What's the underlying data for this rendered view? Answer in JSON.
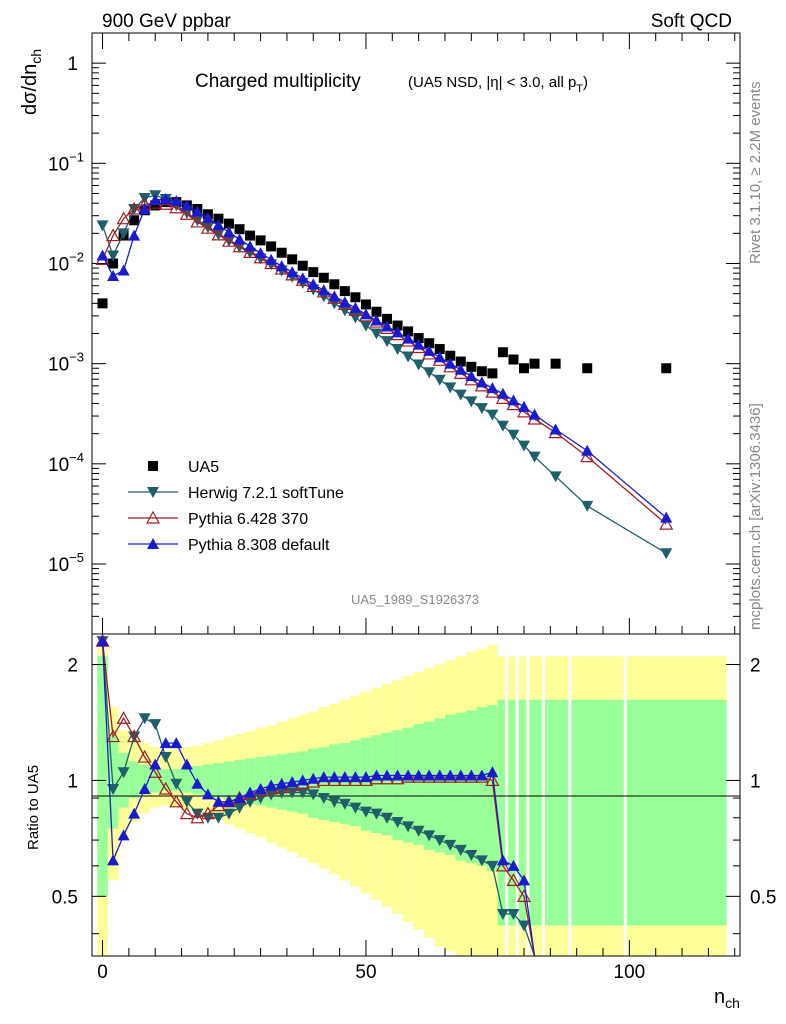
{
  "header": {
    "left": "900 GeV ppbar",
    "right": "Soft QCD"
  },
  "side_text": {
    "rivet": "Rivet 3.1.10, ≥ 2.2M events",
    "source": "mcplots.cern.ch [arXiv:1306.3436]"
  },
  "main_title": {
    "text": "Charged multiplicity",
    "sub": "(UA5 NSD, |η| < 3.0, all p",
    "sub_sub": "T",
    "sub_end": ")"
  },
  "analysis_label": "UA5_1989_S1926373",
  "top_ylabel": {
    "main": "dσ/dn",
    "sub": "ch"
  },
  "ratio_ylabel": "Ratio to UA5",
  "xlabel": {
    "main": "n",
    "sub": "ch"
  },
  "top_ticks": [
    {
      "label": "1",
      "exp": "",
      "value": 1
    },
    {
      "label": "10",
      "exp": "−1",
      "value": 0.1
    },
    {
      "label": "10",
      "exp": "−2",
      "value": 0.01
    },
    {
      "label": "10",
      "exp": "−3",
      "value": 0.001
    },
    {
      "label": "10",
      "exp": "−4",
      "value": 0.0001
    },
    {
      "label": "10",
      "exp": "−5",
      "value": 1e-05
    }
  ],
  "ratio_ticks": [
    {
      "label": "2",
      "value": 2
    },
    {
      "label": "1",
      "value": 1
    },
    {
      "label": "0.5",
      "value": 0.5
    }
  ],
  "x_ticks": [
    {
      "label": "0",
      "value": 0
    },
    {
      "label": "50",
      "value": 50
    },
    {
      "label": "100",
      "value": 100
    }
  ],
  "legend": [
    {
      "label": "UA5",
      "marker": "square",
      "color": "#000000"
    },
    {
      "label": "Herwig 7.2.1 softTune",
      "marker": "tri-down",
      "color": "#1f5f6a"
    },
    {
      "label": "Pythia 6.428 370",
      "marker": "tri-open",
      "color": "#a01f26"
    },
    {
      "label": "Pythia 8.308 default",
      "marker": "tri-up",
      "color": "#1a1acf"
    }
  ],
  "chart_data": [
    {
      "type": "scatter",
      "xlim": [
        -2,
        121
      ],
      "ylim": [
        2e-06,
        2
      ],
      "yscale": "log",
      "grid": false,
      "legend_position": "bottom-left",
      "series": [
        {
          "name": "UA5",
          "x": [
            0,
            2,
            4,
            6,
            8,
            10,
            12,
            14,
            16,
            18,
            20,
            22,
            24,
            26,
            28,
            30,
            32,
            34,
            36,
            38,
            40,
            42,
            44,
            46,
            48,
            50,
            52,
            54,
            56,
            58,
            60,
            62,
            64,
            66,
            68,
            70,
            72,
            74,
            76,
            78,
            80,
            82,
            86,
            92,
            107
          ],
          "y": [
            0.004,
            0.01,
            0.019,
            0.027,
            0.034,
            0.038,
            0.041,
            0.041,
            0.038,
            0.035,
            0.031,
            0.028,
            0.025,
            0.022,
            0.019,
            0.017,
            0.0148,
            0.0128,
            0.011,
            0.0095,
            0.0082,
            0.0072,
            0.0062,
            0.0053,
            0.0046,
            0.0039,
            0.0033,
            0.0028,
            0.0024,
            0.0021,
            0.0018,
            0.0016,
            0.0014,
            0.0012,
            0.00105,
            0.00093,
            0.00084,
            0.0008,
            0.0013,
            0.0011,
            0.0009,
            0.001,
            0.001,
            0.0009,
            0.0009
          ]
        },
        {
          "name": "Herwig 7.2.1 softTune",
          "x": [
            0,
            2,
            4,
            6,
            8,
            10,
            12,
            14,
            16,
            18,
            20,
            22,
            24,
            26,
            28,
            30,
            32,
            34,
            36,
            38,
            40,
            42,
            44,
            46,
            48,
            50,
            52,
            54,
            56,
            58,
            60,
            62,
            64,
            66,
            68,
            70,
            72,
            74,
            76,
            78,
            80,
            82,
            86,
            92,
            107
          ],
          "y": [
            0.024,
            0.012,
            0.02,
            0.035,
            0.045,
            0.048,
            0.044,
            0.038,
            0.032,
            0.027,
            0.023,
            0.0195,
            0.0168,
            0.0146,
            0.0128,
            0.0112,
            0.0098,
            0.0085,
            0.0074,
            0.0064,
            0.0055,
            0.0047,
            0.004,
            0.0034,
            0.0029,
            0.0024,
            0.002,
            0.00168,
            0.0014,
            0.00118,
            0.00098,
            0.00082,
            0.00069,
            0.00058,
            0.00049,
            0.00042,
            0.00036,
            0.00031,
            0.00024,
            0.000195,
            0.000152,
            0.000118,
            7.5e-05,
            3.8e-05,
            1.28e-05
          ]
        },
        {
          "name": "Pythia 6.428 370",
          "x": [
            0,
            2,
            4,
            6,
            8,
            10,
            12,
            14,
            16,
            18,
            20,
            22,
            24,
            26,
            28,
            30,
            32,
            34,
            36,
            38,
            40,
            42,
            44,
            46,
            48,
            50,
            52,
            54,
            56,
            58,
            60,
            62,
            64,
            66,
            68,
            70,
            72,
            74,
            76,
            78,
            80,
            82,
            86,
            92,
            107
          ],
          "y": [
            0.011,
            0.019,
            0.028,
            0.035,
            0.039,
            0.04,
            0.039,
            0.036,
            0.031,
            0.026,
            0.0225,
            0.0193,
            0.0167,
            0.0147,
            0.0129,
            0.0114,
            0.01,
            0.0088,
            0.0077,
            0.0068,
            0.0059,
            0.0052,
            0.0045,
            0.0039,
            0.0034,
            0.003,
            0.0026,
            0.00225,
            0.00195,
            0.00168,
            0.00145,
            0.00125,
            0.00108,
            0.00093,
            0.0008,
            0.00069,
            0.0006,
            0.00052,
            0.00045,
            0.00039,
            0.00033,
            0.00028,
            0.000205,
            0.000118,
            2.5e-05
          ]
        },
        {
          "name": "Pythia 8.308 default",
          "x": [
            0,
            2,
            4,
            6,
            8,
            10,
            12,
            14,
            16,
            18,
            20,
            22,
            24,
            26,
            28,
            30,
            32,
            34,
            36,
            38,
            40,
            42,
            44,
            46,
            48,
            50,
            52,
            54,
            56,
            58,
            60,
            62,
            64,
            66,
            68,
            70,
            72,
            74,
            76,
            78,
            80,
            82,
            86,
            92,
            107
          ],
          "y": [
            0.012,
            0.0075,
            0.0085,
            0.019,
            0.035,
            0.043,
            0.044,
            0.042,
            0.038,
            0.033,
            0.0285,
            0.0242,
            0.0205,
            0.0174,
            0.0148,
            0.0127,
            0.0109,
            0.0094,
            0.0082,
            0.0071,
            0.0062,
            0.0054,
            0.0047,
            0.0041,
            0.0036,
            0.0031,
            0.0027,
            0.00235,
            0.00205,
            0.00178,
            0.00155,
            0.00134,
            0.00116,
            0.001,
            0.00087,
            0.00075,
            0.00065,
            0.00057,
            0.0005,
            0.00043,
            0.00037,
            0.00031,
            0.00022,
            0.000135,
            2.9e-05
          ]
        }
      ]
    },
    {
      "type": "scatter",
      "xlim": [
        -2,
        121
      ],
      "ylim": [
        0.35,
        2.4
      ],
      "yscale": "log",
      "ylabel": "Ratio to UA5",
      "reference_line": 1,
      "bands": {
        "x": [
          0,
          2,
          4,
          6,
          8,
          10,
          12,
          14,
          16,
          18,
          20,
          22,
          24,
          26,
          28,
          30,
          32,
          34,
          36,
          38,
          40,
          42,
          44,
          46,
          48,
          50,
          52,
          54,
          56,
          58,
          60,
          62,
          64,
          66,
          68,
          70,
          72,
          74,
          76,
          78,
          80,
          82,
          86,
          92,
          107
        ],
        "green": [
          [
            0.5,
            2.1
          ],
          [
            0.75,
            1.3
          ],
          [
            0.85,
            1.18
          ],
          [
            0.9,
            1.12
          ],
          [
            0.92,
            1.1
          ],
          [
            0.93,
            1.08
          ],
          [
            0.94,
            1.07
          ],
          [
            0.94,
            1.07
          ],
          [
            0.93,
            1.08
          ],
          [
            0.92,
            1.09
          ],
          [
            0.91,
            1.1
          ],
          [
            0.9,
            1.11
          ],
          [
            0.89,
            1.12
          ],
          [
            0.88,
            1.13
          ],
          [
            0.87,
            1.14
          ],
          [
            0.86,
            1.15
          ],
          [
            0.85,
            1.16
          ],
          [
            0.84,
            1.17
          ],
          [
            0.83,
            1.18
          ],
          [
            0.82,
            1.19
          ],
          [
            0.8,
            1.21
          ],
          [
            0.79,
            1.22
          ],
          [
            0.78,
            1.24
          ],
          [
            0.77,
            1.25
          ],
          [
            0.76,
            1.27
          ],
          [
            0.74,
            1.29
          ],
          [
            0.73,
            1.31
          ],
          [
            0.72,
            1.33
          ],
          [
            0.7,
            1.35
          ],
          [
            0.69,
            1.37
          ],
          [
            0.68,
            1.4
          ],
          [
            0.66,
            1.42
          ],
          [
            0.65,
            1.45
          ],
          [
            0.64,
            1.48
          ],
          [
            0.62,
            1.5
          ],
          [
            0.61,
            1.52
          ],
          [
            0.6,
            1.55
          ],
          [
            0.58,
            1.57
          ],
          [
            0.42,
            1.62
          ],
          [
            0.42,
            1.62
          ],
          [
            0.42,
            1.62
          ],
          [
            0.42,
            1.62
          ],
          [
            0.42,
            1.62
          ],
          [
            0.42,
            1.62
          ],
          [
            0.42,
            1.62
          ]
        ],
        "yellow": [
          [
            0.35,
            2.3
          ],
          [
            0.55,
            1.55
          ],
          [
            0.7,
            1.35
          ],
          [
            0.78,
            1.28
          ],
          [
            0.82,
            1.25
          ],
          [
            0.85,
            1.22
          ],
          [
            0.86,
            1.2
          ],
          [
            0.85,
            1.21
          ],
          [
            0.84,
            1.22
          ],
          [
            0.83,
            1.23
          ],
          [
            0.81,
            1.25
          ],
          [
            0.79,
            1.27
          ],
          [
            0.77,
            1.3
          ],
          [
            0.75,
            1.32
          ],
          [
            0.73,
            1.34
          ],
          [
            0.71,
            1.37
          ],
          [
            0.69,
            1.39
          ],
          [
            0.67,
            1.42
          ],
          [
            0.65,
            1.45
          ],
          [
            0.63,
            1.48
          ],
          [
            0.61,
            1.51
          ],
          [
            0.59,
            1.55
          ],
          [
            0.57,
            1.58
          ],
          [
            0.55,
            1.62
          ],
          [
            0.53,
            1.66
          ],
          [
            0.51,
            1.7
          ],
          [
            0.49,
            1.74
          ],
          [
            0.47,
            1.78
          ],
          [
            0.45,
            1.82
          ],
          [
            0.43,
            1.87
          ],
          [
            0.41,
            1.91
          ],
          [
            0.39,
            1.96
          ],
          [
            0.37,
            2.0
          ],
          [
            0.36,
            2.05
          ],
          [
            0.35,
            2.1
          ],
          [
            0.35,
            2.15
          ],
          [
            0.35,
            2.2
          ],
          [
            0.35,
            2.25
          ],
          [
            0.35,
            2.1
          ],
          [
            0.35,
            2.1
          ],
          [
            0.35,
            2.1
          ],
          [
            0.35,
            2.1
          ],
          [
            0.35,
            2.1
          ],
          [
            0.35,
            2.1
          ],
          [
            0.35,
            2.1
          ]
        ]
      },
      "series": [
        {
          "name": "Herwig 7.2.1 softTune",
          "x": [
            0,
            2,
            4,
            6,
            8,
            10,
            12,
            14,
            16,
            18,
            20,
            22,
            24,
            26,
            28,
            30,
            32,
            34,
            36,
            38,
            40,
            42,
            44,
            46,
            48,
            50,
            52,
            54,
            56,
            58,
            60,
            62,
            64,
            66,
            68,
            70,
            72,
            74,
            76,
            78,
            80,
            82
          ],
          "y": [
            2.3,
            0.95,
            1.05,
            1.3,
            1.45,
            1.4,
            1.15,
            0.98,
            0.88,
            0.82,
            0.8,
            0.8,
            0.82,
            0.85,
            0.88,
            0.9,
            0.92,
            0.93,
            0.93,
            0.93,
            0.92,
            0.9,
            0.88,
            0.87,
            0.85,
            0.83,
            0.82,
            0.8,
            0.78,
            0.76,
            0.74,
            0.72,
            0.7,
            0.68,
            0.66,
            0.64,
            0.62,
            0.6,
            0.45,
            0.45,
            0.42,
            0.35
          ]
        },
        {
          "name": "Pythia 6.428 370",
          "x": [
            0,
            2,
            4,
            6,
            8,
            10,
            12,
            14,
            16,
            18,
            20,
            22,
            24,
            26,
            28,
            30,
            32,
            34,
            36,
            38,
            40,
            42,
            44,
            46,
            48,
            50,
            52,
            54,
            56,
            58,
            60,
            62,
            64,
            66,
            68,
            70,
            72,
            74,
            76,
            78,
            80,
            82
          ],
          "y": [
            2.3,
            1.3,
            1.45,
            1.3,
            1.15,
            1.05,
            0.95,
            0.88,
            0.82,
            0.8,
            0.82,
            0.86,
            0.88,
            0.9,
            0.92,
            0.94,
            0.95,
            0.96,
            0.97,
            0.98,
            0.99,
            1.0,
            1.0,
            1.0,
            1.0,
            1.0,
            1.01,
            1.01,
            1.01,
            1.02,
            1.02,
            1.02,
            1.02,
            1.02,
            1.02,
            1.02,
            1.02,
            1.0,
            0.6,
            0.55,
            0.5,
            0.35
          ]
        },
        {
          "name": "Pythia 8.308 default",
          "x": [
            0,
            2,
            4,
            6,
            8,
            10,
            12,
            14,
            16,
            18,
            20,
            22,
            24,
            26,
            28,
            30,
            32,
            34,
            36,
            38,
            40,
            42,
            44,
            46,
            48,
            50,
            52,
            54,
            56,
            58,
            60,
            62,
            64,
            66,
            68,
            70,
            72,
            74,
            76,
            78,
            80,
            82
          ],
          "y": [
            2.3,
            0.62,
            0.72,
            0.82,
            0.95,
            1.1,
            1.25,
            1.25,
            1.1,
            0.98,
            0.92,
            0.88,
            0.88,
            0.9,
            0.93,
            0.95,
            0.97,
            0.98,
            0.99,
            1.0,
            1.01,
            1.02,
            1.02,
            1.02,
            1.02,
            1.02,
            1.03,
            1.03,
            1.03,
            1.03,
            1.03,
            1.03,
            1.03,
            1.03,
            1.03,
            1.03,
            1.03,
            1.05,
            0.62,
            0.6,
            0.55,
            0.35
          ]
        }
      ]
    }
  ]
}
